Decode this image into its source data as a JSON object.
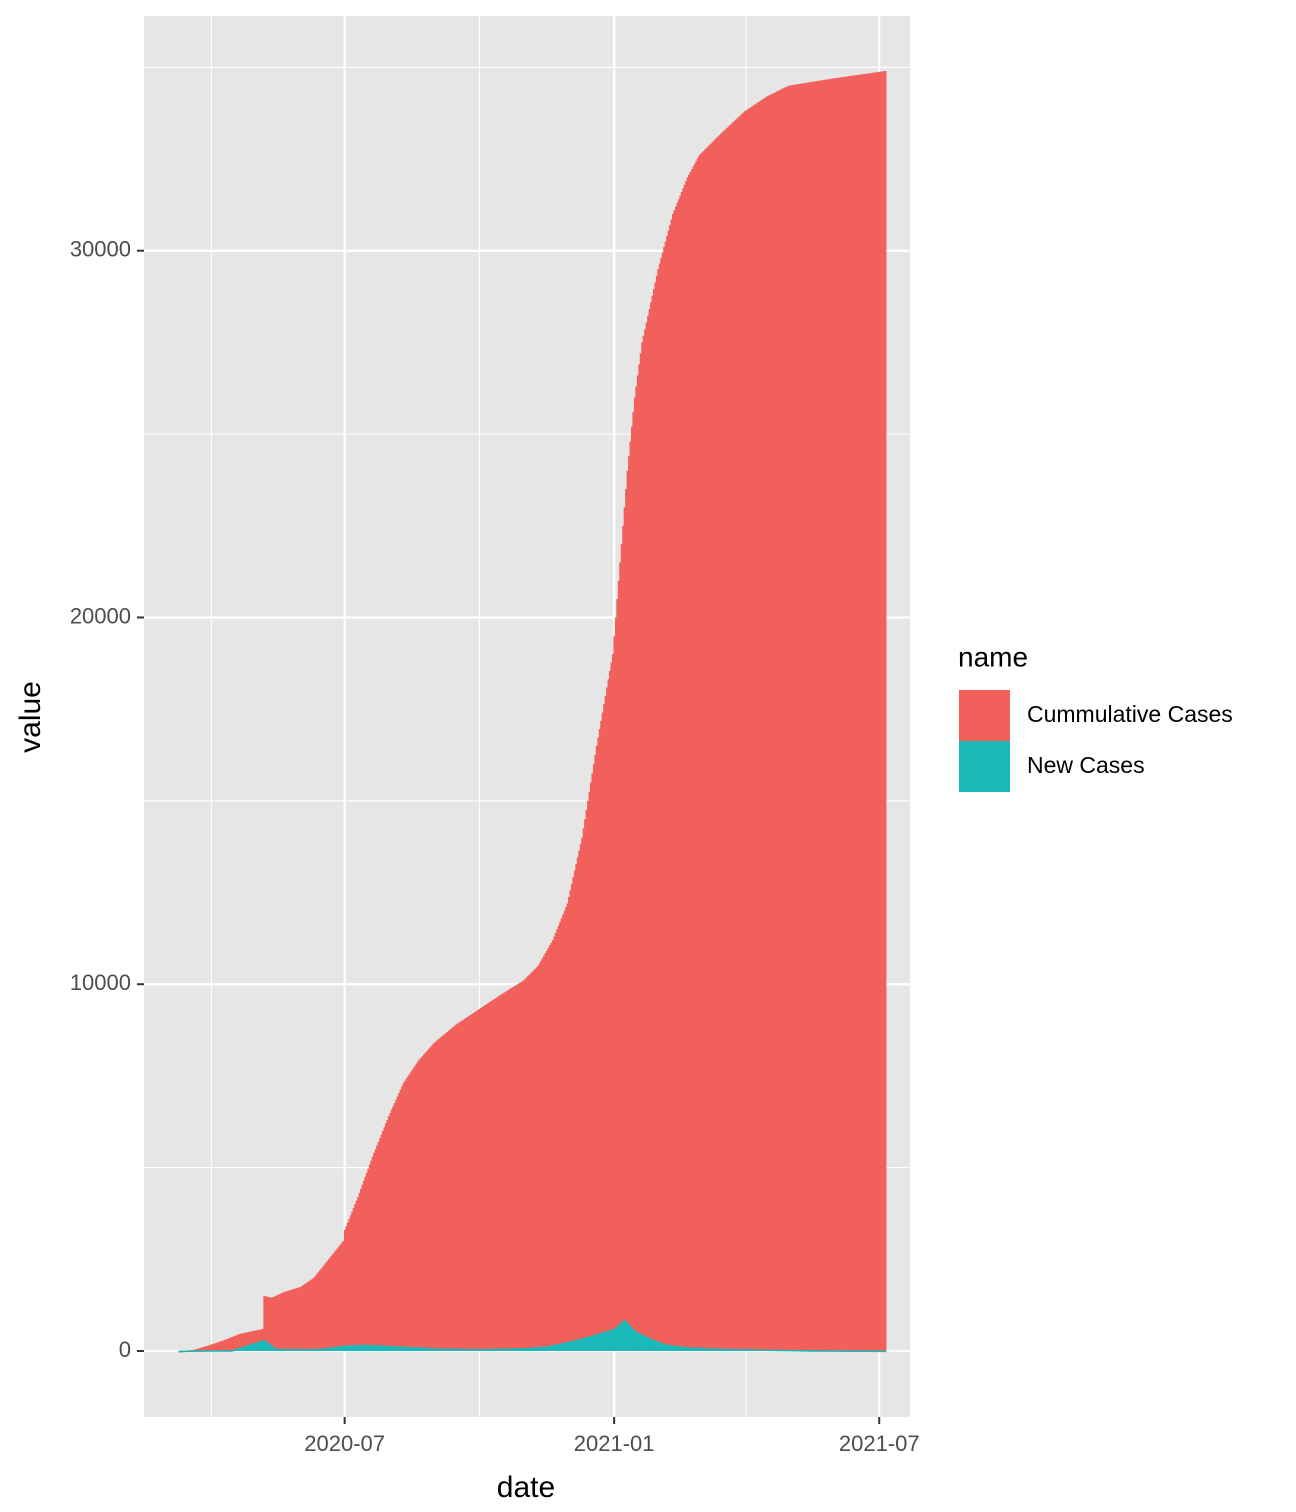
{
  "chart_data": {
    "type": "bar",
    "title": "",
    "xlabel": "date",
    "ylabel": "value",
    "x_axis": {
      "type": "date",
      "range": [
        "2020-02-15",
        "2021-07-22"
      ],
      "ticks": [
        "2020-07-01",
        "2021-01-01",
        "2021-07-01"
      ],
      "tick_labels": [
        "2020-07",
        "2021-01",
        "2021-07"
      ],
      "minor_ticks": [
        "2020-04-01",
        "2020-10-01",
        "2021-04-01"
      ]
    },
    "y_axis": {
      "range": [
        -1800,
        36400
      ],
      "ticks": [
        0,
        10000,
        20000,
        30000
      ],
      "tick_labels": [
        "0",
        "10000",
        "20000",
        "30000"
      ],
      "minor_ticks": [
        5000,
        15000,
        25000,
        35000
      ]
    },
    "grid": true,
    "legend": {
      "title": "name",
      "position": "right",
      "entries": [
        "Cummulative Cases",
        "New Cases"
      ]
    },
    "colors": {
      "Cummulative Cases": "#F2605C",
      "New Cases": "#1BB8B9",
      "panel": "#E6E6E6",
      "grid": "#FFFFFF"
    },
    "series": [
      {
        "name": "Cummulative Cases",
        "points": [
          [
            "2020-03-10",
            0
          ],
          [
            "2020-03-20",
            30
          ],
          [
            "2020-03-30",
            150
          ],
          [
            "2020-04-10",
            300
          ],
          [
            "2020-04-20",
            460
          ],
          [
            "2020-04-30",
            550
          ],
          [
            "2020-05-06",
            600
          ],
          [
            "2020-05-07",
            1500
          ],
          [
            "2020-05-12",
            1450
          ],
          [
            "2020-05-20",
            1600
          ],
          [
            "2020-06-01",
            1750
          ],
          [
            "2020-06-10",
            2000
          ],
          [
            "2020-06-20",
            2500
          ],
          [
            "2020-06-30",
            3000
          ],
          [
            "2020-07-01",
            3300
          ],
          [
            "2020-07-10",
            4200
          ],
          [
            "2020-07-20",
            5300
          ],
          [
            "2020-07-31",
            6400
          ],
          [
            "2020-08-10",
            7300
          ],
          [
            "2020-08-20",
            7900
          ],
          [
            "2020-08-31",
            8400
          ],
          [
            "2020-09-15",
            8900
          ],
          [
            "2020-09-30",
            9300
          ],
          [
            "2020-10-15",
            9700
          ],
          [
            "2020-10-31",
            10100
          ],
          [
            "2020-11-10",
            10500
          ],
          [
            "2020-11-20",
            11200
          ],
          [
            "2020-11-30",
            12200
          ],
          [
            "2020-12-10",
            14000
          ],
          [
            "2020-12-20",
            16500
          ],
          [
            "2020-12-31",
            19000
          ],
          [
            "2021-01-05",
            21500
          ],
          [
            "2021-01-10",
            24000
          ],
          [
            "2021-01-15",
            26000
          ],
          [
            "2021-01-20",
            27500
          ],
          [
            "2021-01-31",
            29500
          ],
          [
            "2021-02-10",
            31000
          ],
          [
            "2021-02-20",
            32000
          ],
          [
            "2021-02-28",
            32600
          ],
          [
            "2021-03-15",
            33200
          ],
          [
            "2021-03-31",
            33800
          ],
          [
            "2021-04-15",
            34200
          ],
          [
            "2021-04-30",
            34500
          ],
          [
            "2021-05-31",
            34700
          ],
          [
            "2021-07-05",
            34900
          ]
        ]
      },
      {
        "name": "New Cases",
        "points": [
          [
            "2020-03-10",
            10
          ],
          [
            "2020-03-20",
            15
          ],
          [
            "2020-04-01",
            20
          ],
          [
            "2020-04-15",
            20
          ],
          [
            "2020-05-07",
            300
          ],
          [
            "2020-05-15",
            60
          ],
          [
            "2020-06-01",
            50
          ],
          [
            "2020-06-15",
            60
          ],
          [
            "2020-07-01",
            150
          ],
          [
            "2020-07-15",
            170
          ],
          [
            "2020-08-01",
            140
          ],
          [
            "2020-08-15",
            110
          ],
          [
            "2020-09-01",
            70
          ],
          [
            "2020-10-01",
            50
          ],
          [
            "2020-11-01",
            80
          ],
          [
            "2020-11-15",
            120
          ],
          [
            "2020-12-01",
            250
          ],
          [
            "2020-12-15",
            400
          ],
          [
            "2021-01-01",
            600
          ],
          [
            "2021-01-08",
            850
          ],
          [
            "2021-01-15",
            550
          ],
          [
            "2021-01-25",
            350
          ],
          [
            "2021-02-05",
            180
          ],
          [
            "2021-02-20",
            100
          ],
          [
            "2021-03-15",
            60
          ],
          [
            "2021-04-15",
            40
          ],
          [
            "2021-05-15",
            20
          ],
          [
            "2021-07-05",
            10
          ]
        ]
      }
    ]
  }
}
